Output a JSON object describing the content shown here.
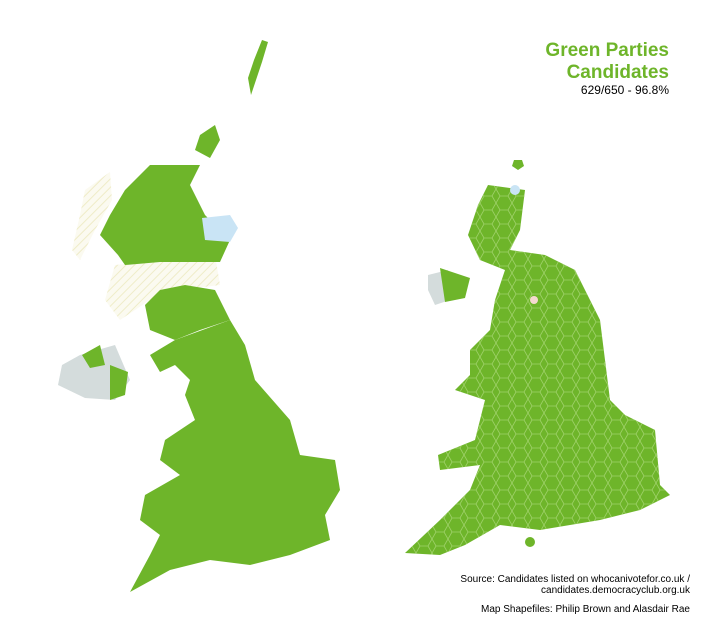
{
  "title": [
    "Green Parties",
    "Candidates"
  ],
  "subtitle": "629/650 - 96.8%",
  "source": [
    "Source: Candidates listed on whocanivotefor.co.uk /",
    "candidates.democracyclub.org.uk"
  ],
  "credit": "Map Shapefiles: Philip Brown and Alasdair Rae",
  "color": "#6eb52a"
}
